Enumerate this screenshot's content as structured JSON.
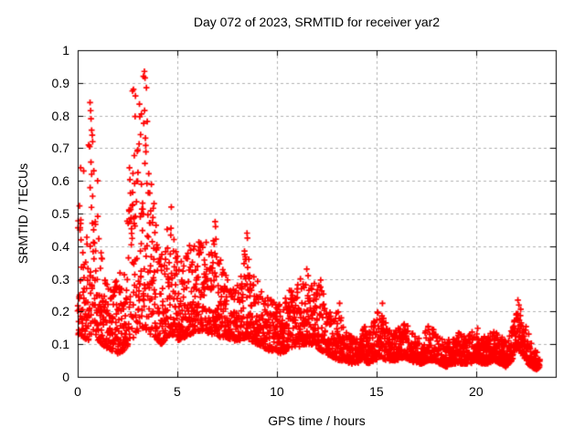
{
  "chart_data": {
    "type": "scatter",
    "title": "Day 072 of 2023, SRMTID for receiver yar2",
    "xlabel": "GPS time / hours",
    "ylabel": "SRMTID / TECUs",
    "xlim": [
      0,
      24
    ],
    "ylim": [
      0,
      1
    ],
    "xticks": [
      {
        "value": 0,
        "label": "0"
      },
      {
        "value": 5,
        "label": "5"
      },
      {
        "value": 10,
        "label": "10"
      },
      {
        "value": 15,
        "label": "15"
      },
      {
        "value": 20,
        "label": "20"
      }
    ],
    "yticks": [
      {
        "value": 0,
        "label": "0"
      },
      {
        "value": 0.1,
        "label": "0.1"
      },
      {
        "value": 0.2,
        "label": "0.2"
      },
      {
        "value": 0.3,
        "label": "0.3"
      },
      {
        "value": 0.4,
        "label": "0.4"
      },
      {
        "value": 0.5,
        "label": "0.5"
      },
      {
        "value": 0.6,
        "label": "0.6"
      },
      {
        "value": 0.7,
        "label": "0.7"
      },
      {
        "value": 0.8,
        "label": "0.8"
      },
      {
        "value": 0.9,
        "label": "0.9"
      },
      {
        "value": 1,
        "label": "1"
      }
    ],
    "grid": {
      "show": true,
      "color": "#b0b0b0",
      "dash": [
        3,
        3
      ]
    },
    "axis_color": "#000000",
    "marker": {
      "shape": "plus",
      "color": "#ff0000",
      "size": 7,
      "stroke": 1.7
    },
    "legend": "none",
    "series": [
      {
        "name": "SRMTID",
        "points_per_hour": 120,
        "time_range": [
          0,
          23.2
        ],
        "distribution_skew": 1.8,
        "envelope": [
          [
            0.0,
            0.13,
            0.58
          ],
          [
            0.3,
            0.12,
            0.46
          ],
          [
            0.5,
            0.11,
            0.52
          ],
          [
            0.7,
            0.12,
            0.72
          ],
          [
            0.9,
            0.11,
            0.58
          ],
          [
            1.1,
            0.1,
            0.42
          ],
          [
            1.4,
            0.09,
            0.3
          ],
          [
            1.7,
            0.08,
            0.28
          ],
          [
            2.0,
            0.07,
            0.3
          ],
          [
            2.3,
            0.08,
            0.36
          ],
          [
            2.6,
            0.1,
            0.58
          ],
          [
            2.8,
            0.12,
            0.78
          ],
          [
            3.0,
            0.13,
            0.86
          ],
          [
            3.2,
            0.14,
            0.8
          ],
          [
            3.35,
            0.15,
            0.92
          ],
          [
            3.5,
            0.14,
            0.78
          ],
          [
            3.65,
            0.12,
            0.7
          ],
          [
            3.8,
            0.12,
            0.55
          ],
          [
            4.0,
            0.11,
            0.45
          ],
          [
            4.2,
            0.1,
            0.38
          ],
          [
            4.5,
            0.12,
            0.46
          ],
          [
            4.7,
            0.13,
            0.5
          ],
          [
            4.9,
            0.12,
            0.42
          ],
          [
            5.1,
            0.11,
            0.34
          ],
          [
            5.4,
            0.12,
            0.38
          ],
          [
            5.7,
            0.13,
            0.42
          ],
          [
            6.0,
            0.14,
            0.41
          ],
          [
            6.3,
            0.14,
            0.44
          ],
          [
            6.6,
            0.13,
            0.4
          ],
          [
            6.9,
            0.13,
            0.46
          ],
          [
            7.2,
            0.12,
            0.36
          ],
          [
            7.5,
            0.12,
            0.3
          ],
          [
            7.8,
            0.11,
            0.28
          ],
          [
            8.1,
            0.11,
            0.3
          ],
          [
            8.45,
            0.12,
            0.42
          ],
          [
            8.7,
            0.11,
            0.32
          ],
          [
            9.0,
            0.1,
            0.3
          ],
          [
            9.3,
            0.09,
            0.26
          ],
          [
            9.6,
            0.08,
            0.24
          ],
          [
            9.9,
            0.08,
            0.24
          ],
          [
            10.2,
            0.07,
            0.25
          ],
          [
            10.5,
            0.08,
            0.26
          ],
          [
            10.8,
            0.09,
            0.28
          ],
          [
            11.1,
            0.09,
            0.3
          ],
          [
            11.4,
            0.1,
            0.32
          ],
          [
            11.7,
            0.1,
            0.31
          ],
          [
            12.0,
            0.09,
            0.28
          ],
          [
            12.2,
            0.08,
            0.3
          ],
          [
            12.5,
            0.07,
            0.22
          ],
          [
            12.8,
            0.06,
            0.18
          ],
          [
            13.1,
            0.05,
            0.21
          ],
          [
            13.4,
            0.05,
            0.15
          ],
          [
            13.7,
            0.04,
            0.13
          ],
          [
            14.0,
            0.04,
            0.12
          ],
          [
            14.3,
            0.05,
            0.17
          ],
          [
            14.6,
            0.04,
            0.13
          ],
          [
            14.9,
            0.05,
            0.19
          ],
          [
            15.2,
            0.06,
            0.21
          ],
          [
            15.5,
            0.05,
            0.16
          ],
          [
            15.8,
            0.05,
            0.14
          ],
          [
            16.1,
            0.05,
            0.15
          ],
          [
            16.4,
            0.06,
            0.18
          ],
          [
            16.7,
            0.05,
            0.14
          ],
          [
            17.0,
            0.04,
            0.13
          ],
          [
            17.3,
            0.04,
            0.12
          ],
          [
            17.6,
            0.05,
            0.16
          ],
          [
            17.9,
            0.05,
            0.15
          ],
          [
            18.2,
            0.04,
            0.12
          ],
          [
            18.5,
            0.03,
            0.11
          ],
          [
            18.8,
            0.04,
            0.12
          ],
          [
            19.1,
            0.04,
            0.14
          ],
          [
            19.4,
            0.04,
            0.15
          ],
          [
            19.7,
            0.04,
            0.13
          ],
          [
            20.0,
            0.05,
            0.16
          ],
          [
            20.3,
            0.04,
            0.12
          ],
          [
            20.6,
            0.04,
            0.13
          ],
          [
            20.9,
            0.05,
            0.15
          ],
          [
            21.2,
            0.04,
            0.13
          ],
          [
            21.5,
            0.03,
            0.11
          ],
          [
            21.8,
            0.05,
            0.15
          ],
          [
            22.0,
            0.08,
            0.2
          ],
          [
            22.2,
            0.08,
            0.22
          ],
          [
            22.4,
            0.06,
            0.18
          ],
          [
            22.6,
            0.04,
            0.14
          ],
          [
            22.8,
            0.03,
            0.1
          ],
          [
            23.0,
            0.02,
            0.08
          ],
          [
            23.2,
            0.03,
            0.07
          ]
        ],
        "outliers": [
          [
            0.15,
            0.64
          ],
          [
            0.3,
            0.63
          ],
          [
            0.55,
            0.71
          ],
          [
            0.6,
            0.705
          ],
          [
            0.62,
            0.84
          ],
          [
            0.65,
            0.815
          ],
          [
            0.67,
            0.79
          ],
          [
            0.7,
            0.755
          ],
          [
            0.73,
            0.74
          ],
          [
            0.75,
            0.72
          ],
          [
            1.0,
            0.6
          ],
          [
            2.6,
            0.64
          ],
          [
            2.75,
            0.875
          ],
          [
            2.8,
            0.88
          ],
          [
            2.9,
            0.86
          ],
          [
            3.1,
            0.835
          ],
          [
            3.2,
            0.805
          ],
          [
            3.3,
            0.92
          ],
          [
            3.35,
            0.935
          ],
          [
            3.38,
            0.915
          ],
          [
            3.45,
            0.885
          ],
          [
            4.7,
            0.52
          ],
          [
            6.9,
            0.475
          ],
          [
            6.92,
            0.46
          ],
          [
            8.5,
            0.44
          ],
          [
            8.52,
            0.425
          ],
          [
            11.5,
            0.33
          ],
          [
            13.15,
            0.225
          ],
          [
            15.3,
            0.225
          ],
          [
            22.1,
            0.235
          ],
          [
            22.15,
            0.22
          ]
        ]
      }
    ]
  },
  "plot_geometry_note": "x axis 0-24 hours, data ends near 23.2; y axis 0-1 TECUs"
}
